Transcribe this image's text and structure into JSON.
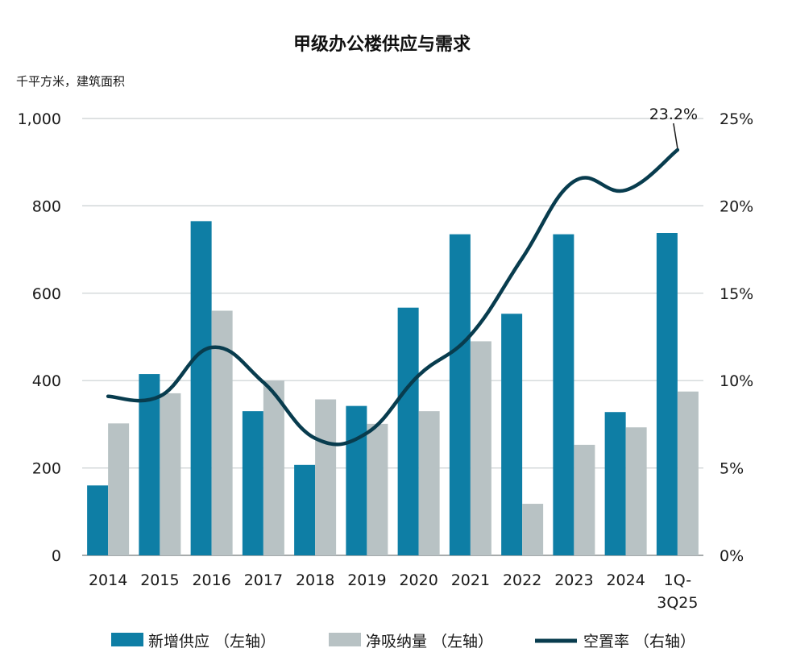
{
  "chart_data": {
    "type": "bar",
    "title": "甲级办公楼供应与需求",
    "ylabel": "千平方米，建筑面积",
    "y_left_ticks": [
      "0",
      "200",
      "400",
      "600",
      "800",
      "1,000"
    ],
    "y_right_ticks": [
      "0%",
      "5%",
      "10%",
      "15%",
      "20%",
      "25%"
    ],
    "ylim_left": [
      0,
      1000
    ],
    "ylim_right": [
      0,
      25
    ],
    "categories": [
      "2014",
      "2015",
      "2016",
      "2017",
      "2018",
      "2019",
      "2020",
      "2021",
      "2022",
      "2023",
      "2024",
      "1Q-3Q25"
    ],
    "category_lines": [
      [
        "2014"
      ],
      [
        "2015"
      ],
      [
        "2016"
      ],
      [
        "2017"
      ],
      [
        "2018"
      ],
      [
        "2019"
      ],
      [
        "2020"
      ],
      [
        "2021"
      ],
      [
        "2022"
      ],
      [
        "2023"
      ],
      [
        "2024"
      ],
      [
        "1Q-",
        "3Q25"
      ]
    ],
    "series": [
      {
        "name": "新增供应 （左轴）",
        "axis": "left",
        "kind": "bar",
        "color": "#0e7ea5",
        "values": [
          160,
          415,
          765,
          330,
          207,
          342,
          567,
          735,
          553,
          735,
          328,
          738
        ]
      },
      {
        "name": "净吸纳量 （左轴）",
        "axis": "left",
        "kind": "bar",
        "color": "#b8c2c4",
        "values": [
          302,
          371,
          560,
          400,
          357,
          301,
          330,
          490,
          118,
          253,
          293,
          375
        ]
      },
      {
        "name": "空置率 （右轴）",
        "axis": "right",
        "kind": "line",
        "color": "#083c4e",
        "values": [
          9.1,
          9.1,
          11.9,
          9.9,
          6.7,
          7.0,
          10.3,
          12.6,
          17.0,
          21.4,
          20.9,
          23.2
        ]
      }
    ],
    "annotation": {
      "text": "23.2%",
      "category": "1Q-3Q25",
      "series": "空置率 （右轴）"
    },
    "grid": true,
    "legend_position": "bottom"
  }
}
